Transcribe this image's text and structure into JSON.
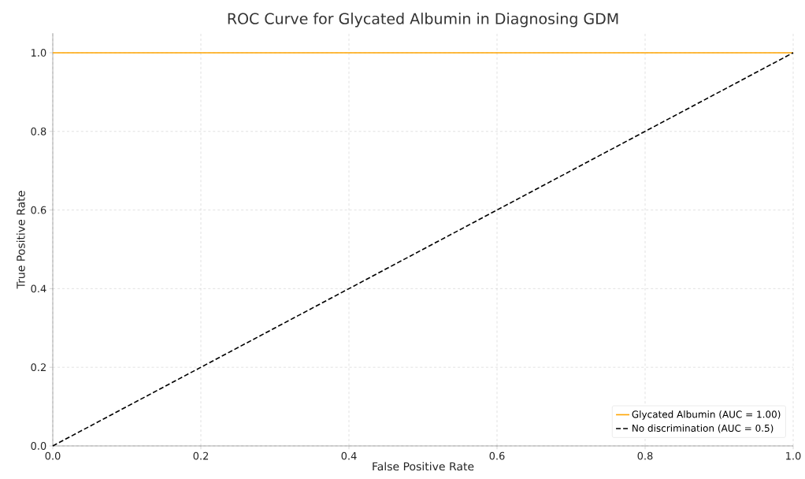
{
  "chart_data": {
    "type": "line",
    "title": "ROC Curve for Glycated Albumin in Diagnosing GDM",
    "xlabel": "False Positive Rate",
    "ylabel": "True Positive Rate",
    "series": [
      {
        "name": "Glycated Albumin (AUC = 1.00)",
        "color": "#ffa500",
        "values": [
          1,
          1
        ],
        "line_style": "solid"
      },
      {
        "name": "No discrimination (AUC = 0.5)",
        "color": "#000000",
        "values": [
          0,
          1
        ],
        "line_style": "dashed"
      }
    ],
    "x": [
      0,
      1
    ],
    "xlim": [
      0,
      1
    ],
    "ylim": [
      0,
      1.05
    ],
    "xticks": [
      {
        "value": 0,
        "label": "0.0"
      },
      {
        "value": 0.2,
        "label": "0.2"
      },
      {
        "value": 0.4,
        "label": "0.4"
      },
      {
        "value": 0.6,
        "label": "0.6"
      },
      {
        "value": 0.8,
        "label": "0.8"
      },
      {
        "value": 1,
        "label": "1.0"
      }
    ],
    "yticks": [
      {
        "value": 0,
        "label": "0.0"
      },
      {
        "value": 0.2,
        "label": "0.2"
      },
      {
        "value": 0.4,
        "label": "0.4"
      },
      {
        "value": 0.6,
        "label": "0.6"
      },
      {
        "value": 0.8,
        "label": "0.8"
      },
      {
        "value": 1,
        "label": "1.0"
      }
    ],
    "grid": true,
    "legend": "bottom right",
    "marker": "none"
  }
}
